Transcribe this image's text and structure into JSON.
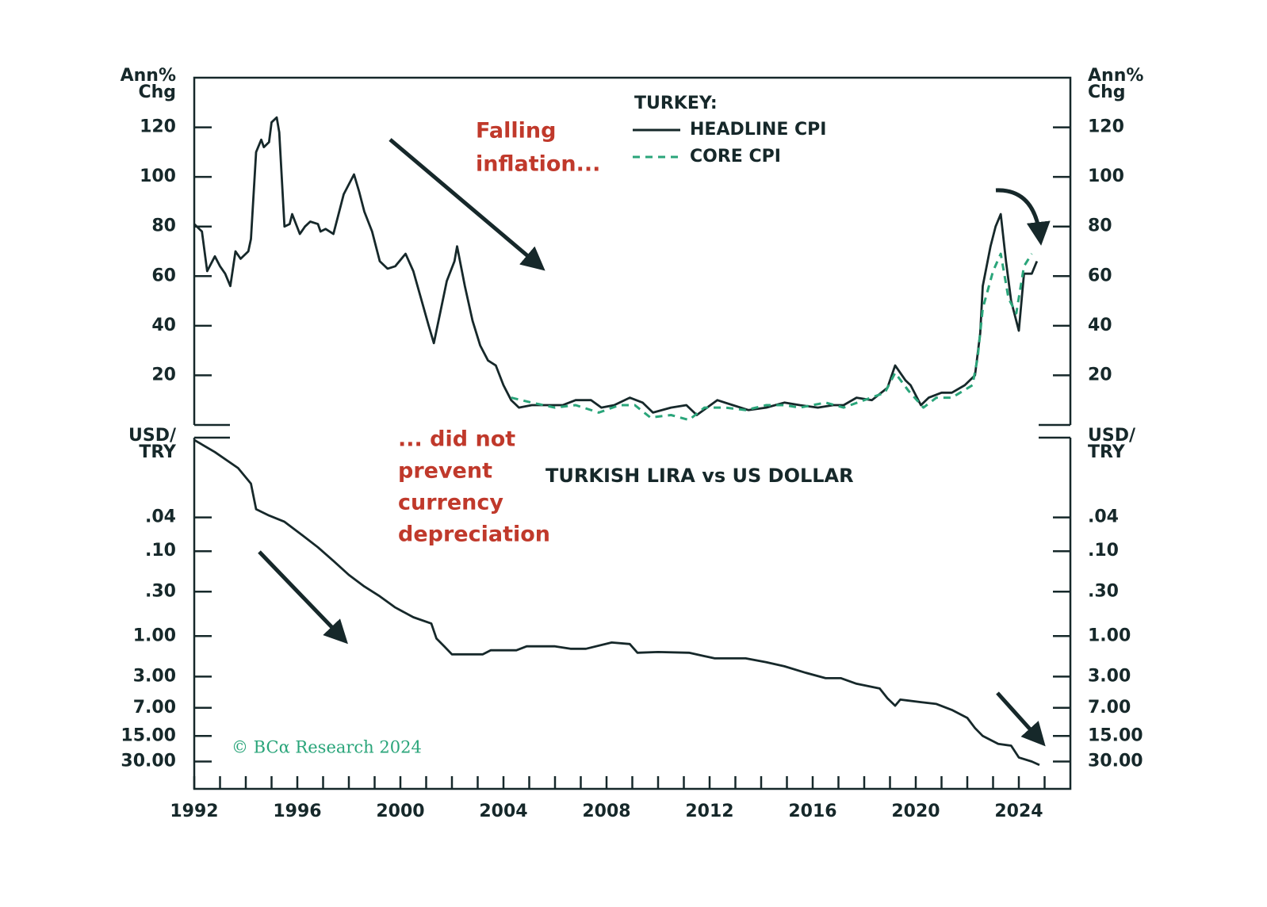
{
  "chart_data": [
    {
      "type": "line",
      "y_label": [
        "Ann%",
        "Chg"
      ],
      "legend_title": "TURKEY:",
      "annotation": [
        "Falling",
        "inflation..."
      ],
      "xlim": [
        1992,
        2026
      ],
      "ylim": [
        0,
        140
      ],
      "yticks": [
        20,
        40,
        60,
        80,
        100,
        120
      ],
      "series": [
        {
          "name": "HEADLINE CPI",
          "color": "#16282a",
          "dash": false,
          "x": [
            1992.0,
            1992.3,
            1992.5,
            1992.8,
            1993.0,
            1993.2,
            1993.4,
            1993.6,
            1993.8,
            1994.1,
            1994.2,
            1994.4,
            1994.6,
            1994.7,
            1994.9,
            1995.0,
            1995.2,
            1995.3,
            1995.5,
            1995.7,
            1995.8,
            1996.1,
            1996.3,
            1996.5,
            1996.8,
            1996.9,
            1997.1,
            1997.4,
            1997.6,
            1997.8,
            1998.2,
            1998.4,
            1998.6,
            1998.9,
            1999.2,
            1999.5,
            1999.8,
            2000.2,
            2000.5,
            2000.8,
            2001.1,
            2001.3,
            2001.6,
            2001.8,
            2002.1,
            2002.2,
            2002.5,
            2002.8,
            2003.1,
            2003.4,
            2003.7,
            2004.0,
            2004.3,
            2004.6,
            2005.1,
            2005.7,
            2006.3,
            2006.8,
            2007.4,
            2007.8,
            2008.3,
            2008.9,
            2009.4,
            2009.8,
            2010.5,
            2011.1,
            2011.5,
            2012.3,
            2012.9,
            2013.5,
            2014.2,
            2014.9,
            2015.5,
            2016.2,
            2016.8,
            2017.2,
            2017.7,
            2018.3,
            2018.9,
            2019.2,
            2019.6,
            2019.8,
            2020.2,
            2020.5,
            2021.0,
            2021.4,
            2021.9,
            2022.3,
            2022.5,
            2022.6,
            2022.9,
            2023.1,
            2023.3,
            2023.5,
            2023.7,
            2024.0,
            2024.2,
            2024.5,
            2024.7
          ],
          "values": [
            81,
            78,
            62,
            68,
            64,
            61,
            56,
            70,
            67,
            70,
            75,
            110,
            115,
            112,
            114,
            122,
            124,
            118,
            80,
            81,
            85,
            77,
            80,
            82,
            81,
            78,
            79,
            77,
            85,
            93,
            101,
            94,
            86,
            78,
            66,
            63,
            64,
            69,
            62,
            51,
            40,
            33,
            48,
            58,
            66,
            72,
            56,
            42,
            32,
            26,
            24,
            16,
            10,
            7,
            8,
            8,
            8,
            10,
            10,
            7,
            8,
            11,
            9,
            5,
            7,
            8,
            4,
            10,
            8,
            6,
            7,
            9,
            8,
            7,
            8,
            8,
            11,
            10,
            15,
            24,
            18,
            16,
            8,
            11,
            13,
            13,
            16,
            20,
            37,
            56,
            72,
            80,
            85,
            66,
            50,
            38,
            61,
            61,
            66
          ]
        },
        {
          "name": "CORE CPI",
          "color": "#2aa57a",
          "dash": true,
          "x": [
            2004.3,
            2005.1,
            2006.0,
            2006.8,
            2007.7,
            2008.5,
            2009.1,
            2009.7,
            2010.5,
            2011.2,
            2011.8,
            2012.6,
            2013.4,
            2014.2,
            2014.9,
            2015.5,
            2016.5,
            2017.2,
            2018.0,
            2018.8,
            2019.2,
            2019.7,
            2020.3,
            2020.8,
            2021.4,
            2022.2,
            2022.4,
            2022.6,
            2023.0,
            2023.3,
            2023.6,
            2023.9,
            2024.2,
            2024.5
          ],
          "values": [
            11,
            9,
            7,
            8,
            5,
            8,
            8,
            3,
            4,
            2,
            7,
            7,
            6,
            8,
            8,
            7,
            9,
            7,
            10,
            13,
            21,
            14,
            7,
            11,
            11,
            16,
            27,
            47,
            62,
            69,
            51,
            45,
            64,
            69
          ]
        }
      ]
    },
    {
      "type": "line",
      "y_label": [
        "USD/",
        "TRY"
      ],
      "subtitle": "TURKISH LIRA vs US DOLLAR",
      "annotation": [
        "... did not",
        "prevent",
        "currency",
        "depreciation"
      ],
      "source": "© BCα Research 2024",
      "log": true,
      "inverted": true,
      "xlim": [
        1992,
        2026
      ],
      "xticks": [
        1992,
        1996,
        2000,
        2004,
        2008,
        2012,
        2016,
        2020,
        2024
      ],
      "xminorticks": [
        1993,
        1994,
        1995,
        1997,
        1998,
        1999,
        2001,
        2002,
        2003,
        2005,
        2006,
        2007,
        2009,
        2010,
        2011,
        2013,
        2014,
        2015,
        2017,
        2018,
        2019,
        2021,
        2022,
        2023,
        2025
      ],
      "ylim": [
        0.0046,
        63
      ],
      "yticks": [
        {
          "value": 0.04,
          "label": ".04"
        },
        {
          "value": 0.1,
          "label": ".10"
        },
        {
          "value": 0.3,
          "label": ".30"
        },
        {
          "value": 1,
          "label": "1.00"
        },
        {
          "value": 3,
          "label": "3.00"
        },
        {
          "value": 7,
          "label": "7.00"
        },
        {
          "value": 15,
          "label": "15.00"
        },
        {
          "value": 30,
          "label": "30.00"
        }
      ],
      "series": [
        {
          "name": "USD/TRY",
          "color": "#16282a",
          "dash": false,
          "x": [
            1992.0,
            1992.8,
            1993.7,
            1994.2,
            1994.4,
            1994.9,
            1995.5,
            1996.2,
            1996.8,
            1997.4,
            1998.0,
            1998.6,
            1999.2,
            1999.8,
            2000.5,
            2001.2,
            2001.4,
            2001.7,
            2002.0,
            2002.6,
            2003.2,
            2003.5,
            2004.5,
            2004.9,
            2006.0,
            2006.6,
            2007.2,
            2008.2,
            2008.9,
            2009.2,
            2010.0,
            2011.2,
            2012.2,
            2013.4,
            2014.2,
            2014.9,
            2015.7,
            2016.5,
            2017.1,
            2017.7,
            2018.6,
            2018.9,
            2019.2,
            2019.4,
            2020.2,
            2020.8,
            2021.4,
            2022.0,
            2022.3,
            2022.6,
            2023.2,
            2023.7,
            2024.0,
            2024.5,
            2024.8
          ],
          "values": [
            0.0049,
            0.0068,
            0.0105,
            0.016,
            0.032,
            0.038,
            0.045,
            0.065,
            0.09,
            0.13,
            0.19,
            0.26,
            0.34,
            0.46,
            0.6,
            0.71,
            1.07,
            1.32,
            1.64,
            1.64,
            1.64,
            1.47,
            1.47,
            1.32,
            1.32,
            1.41,
            1.41,
            1.19,
            1.24,
            1.57,
            1.54,
            1.57,
            1.83,
            1.83,
            2.03,
            2.27,
            2.69,
            3.13,
            3.13,
            3.64,
            4.14,
            5.4,
            6.6,
            5.6,
            6.0,
            6.3,
            7.4,
            9.2,
            12.1,
            15.0,
            18.6,
            19.5,
            26.9,
            30,
            33
          ]
        }
      ]
    }
  ]
}
